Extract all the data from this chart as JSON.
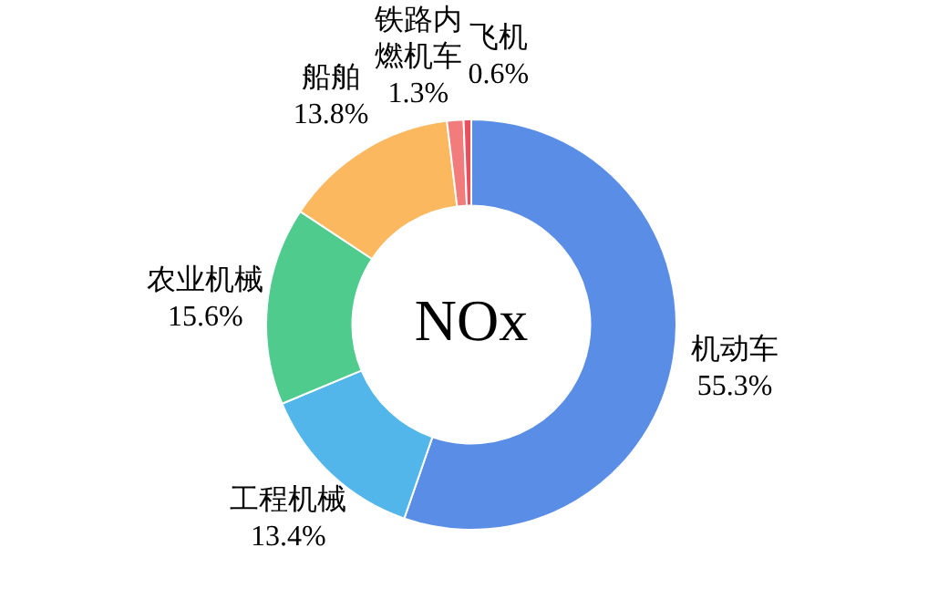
{
  "chart_data": {
    "type": "donut",
    "title": "NOx",
    "categories": [
      "机动车",
      "工程机械",
      "农业机械",
      "船舶",
      "铁路内燃机车",
      "飞机"
    ],
    "values": [
      55.3,
      13.4,
      15.6,
      13.8,
      1.3,
      0.6
    ],
    "colors": [
      "#5a8ee6",
      "#52b6ea",
      "#4fcb8e",
      "#fbb85e",
      "#f27b7b",
      "#e9505d"
    ],
    "value_labels": [
      "55.3%",
      "13.4%",
      "15.6%",
      "13.8%",
      "1.3%",
      "0.6%"
    ],
    "legend": false
  }
}
